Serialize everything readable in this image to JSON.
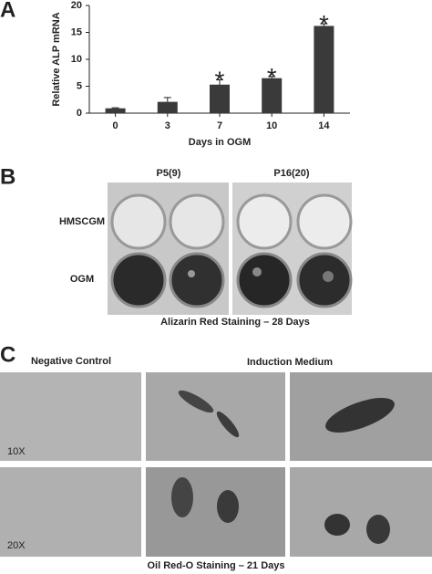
{
  "chart_data": {
    "type": "bar",
    "panel_label": "A",
    "categories": [
      "0",
      "3",
      "7",
      "10",
      "14"
    ],
    "values": [
      0.9,
      2.1,
      5.3,
      6.5,
      16.2
    ],
    "errors": [
      0.1,
      0.8,
      0.9,
      0.3,
      0.4
    ],
    "significance": [
      null,
      null,
      "*",
      "*",
      "*"
    ],
    "color": "#3a3a3a",
    "ylim": [
      0,
      20
    ],
    "yticks": [
      0,
      5,
      10,
      15,
      20
    ],
    "ylabel": "Relative ALP mRNA",
    "xlabel": "Days in OGM"
  },
  "panel_b": {
    "label": "B",
    "columns": [
      "P5(9)",
      "P16(20)"
    ],
    "rows": [
      "HMSCGM",
      "OGM"
    ],
    "caption": "Alizarin Red Staining – 28 Days"
  },
  "panel_c": {
    "label": "C",
    "groups": [
      "Negative Control",
      "Induction Medium"
    ],
    "magnifications": [
      "10X",
      "20X"
    ],
    "caption": "Oil Red-O Staining – 21 Days"
  }
}
